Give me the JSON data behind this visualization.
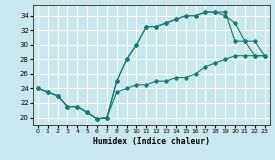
{
  "xlabel": "Humidex (Indice chaleur)",
  "background_color": "#c8e8ed",
  "grid_color": "#ffffff",
  "line_color": "#1a7a6e",
  "xlim": [
    -0.5,
    23.5
  ],
  "ylim": [
    19.0,
    35.5
  ],
  "yticks": [
    20,
    22,
    24,
    26,
    28,
    30,
    32,
    34
  ],
  "xticks": [
    0,
    1,
    2,
    3,
    4,
    5,
    6,
    7,
    8,
    9,
    10,
    11,
    12,
    13,
    14,
    15,
    16,
    17,
    18,
    19,
    20,
    21,
    22,
    23
  ],
  "line1_x": [
    0,
    1,
    2,
    3,
    4,
    5,
    6,
    7,
    8,
    9,
    10,
    11,
    12,
    13,
    14,
    15,
    16,
    17,
    18,
    19,
    20,
    21,
    22,
    23
  ],
  "line1_y": [
    24.0,
    23.5,
    23.0,
    21.5,
    21.5,
    20.7,
    19.8,
    20.0,
    23.5,
    24.0,
    24.5,
    24.5,
    25.0,
    25.0,
    25.5,
    25.5,
    26.0,
    27.0,
    27.5,
    28.0,
    28.5,
    28.5,
    28.5,
    28.5
  ],
  "line2_x": [
    0,
    1,
    2,
    3,
    4,
    5,
    6,
    7,
    8,
    9,
    10,
    11,
    12,
    13,
    14,
    15,
    16,
    17,
    18,
    19,
    20,
    21,
    22,
    23
  ],
  "line2_y": [
    24.0,
    23.5,
    23.0,
    21.5,
    21.5,
    20.7,
    19.8,
    20.0,
    25.0,
    28.0,
    30.0,
    32.5,
    32.5,
    33.0,
    33.5,
    34.0,
    34.0,
    34.5,
    34.5,
    34.0,
    33.0,
    30.5,
    30.5,
    28.5
  ],
  "line3_x": [
    0,
    1,
    2,
    3,
    4,
    5,
    6,
    7,
    8,
    9,
    10,
    11,
    12,
    13,
    14,
    15,
    16,
    17,
    18,
    19,
    20,
    21,
    22,
    23
  ],
  "line3_y": [
    24.0,
    23.5,
    23.0,
    21.5,
    21.5,
    20.7,
    19.8,
    20.0,
    25.0,
    28.0,
    30.0,
    32.5,
    32.5,
    33.0,
    33.5,
    34.0,
    34.0,
    34.5,
    34.5,
    34.5,
    30.5,
    30.5,
    28.5,
    28.5
  ]
}
